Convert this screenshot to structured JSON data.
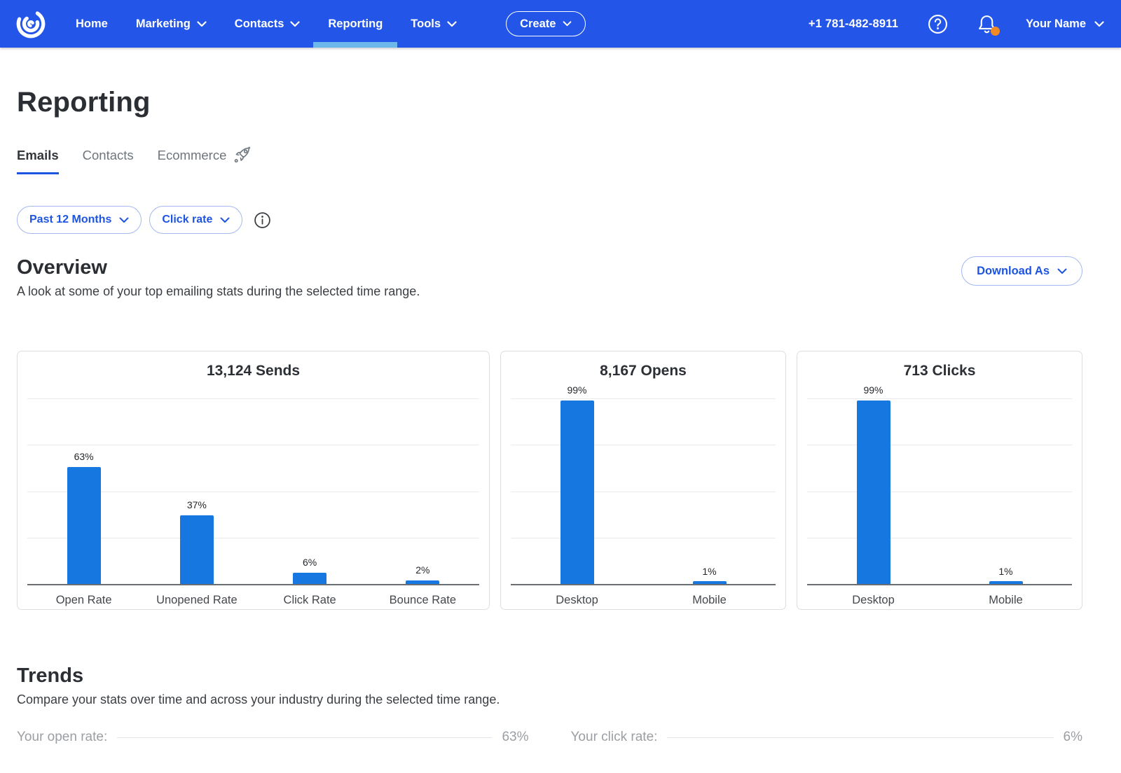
{
  "colors": {
    "nav_bg": "#2356E8",
    "accent": "#1D54E0",
    "bar_blue": "#1577DF",
    "active_underline": "#6CB8EA",
    "notification_dot": "#F08A24"
  },
  "nav": {
    "items": [
      {
        "label": "Home",
        "has_chevron": false
      },
      {
        "label": "Marketing",
        "has_chevron": true
      },
      {
        "label": "Contacts",
        "has_chevron": true
      },
      {
        "label": "Reporting",
        "has_chevron": false,
        "active": true
      },
      {
        "label": "Tools",
        "has_chevron": true
      }
    ],
    "create_label": "Create",
    "phone": "+1 781-482-8911",
    "user_name": "Your Name"
  },
  "page": {
    "title": "Reporting"
  },
  "tabs": [
    {
      "label": "Emails",
      "active": true
    },
    {
      "label": "Contacts",
      "active": false
    },
    {
      "label": "Ecommerce",
      "active": false
    }
  ],
  "filters": {
    "time_range": "Past 12 Months",
    "metric": "Click rate"
  },
  "overview": {
    "title": "Overview",
    "subtitle": "A look at some of your top emailing stats during the selected time range.",
    "download_label": "Download As"
  },
  "chart_data": [
    {
      "type": "bar",
      "title": "13,124 Sends",
      "categories": [
        "Open Rate",
        "Unopened Rate",
        "Click Rate",
        "Bounce Rate"
      ],
      "values": [
        63,
        37,
        6,
        2
      ],
      "value_format": "percent",
      "ylim": [
        0,
        100
      ],
      "gridlines": [
        25,
        50,
        75,
        100
      ],
      "xlabel": "",
      "ylabel": ""
    },
    {
      "type": "bar",
      "title": "8,167 Opens",
      "categories": [
        "Desktop",
        "Mobile"
      ],
      "values": [
        99,
        1
      ],
      "value_format": "percent",
      "ylim": [
        0,
        100
      ],
      "gridlines": [
        25,
        50,
        75,
        100
      ],
      "xlabel": "",
      "ylabel": ""
    },
    {
      "type": "bar",
      "title": "713 Clicks",
      "categories": [
        "Desktop",
        "Mobile"
      ],
      "values": [
        99,
        1
      ],
      "value_format": "percent",
      "ylim": [
        0,
        100
      ],
      "gridlines": [
        25,
        50,
        75,
        100
      ],
      "xlabel": "",
      "ylabel": ""
    }
  ],
  "trends": {
    "title": "Trends",
    "subtitle": "Compare your stats over time and across your industry during the selected time range.",
    "stats": [
      {
        "label": "Your open rate:",
        "value": "63%"
      },
      {
        "label": "Your click rate:",
        "value": "6%"
      }
    ]
  }
}
